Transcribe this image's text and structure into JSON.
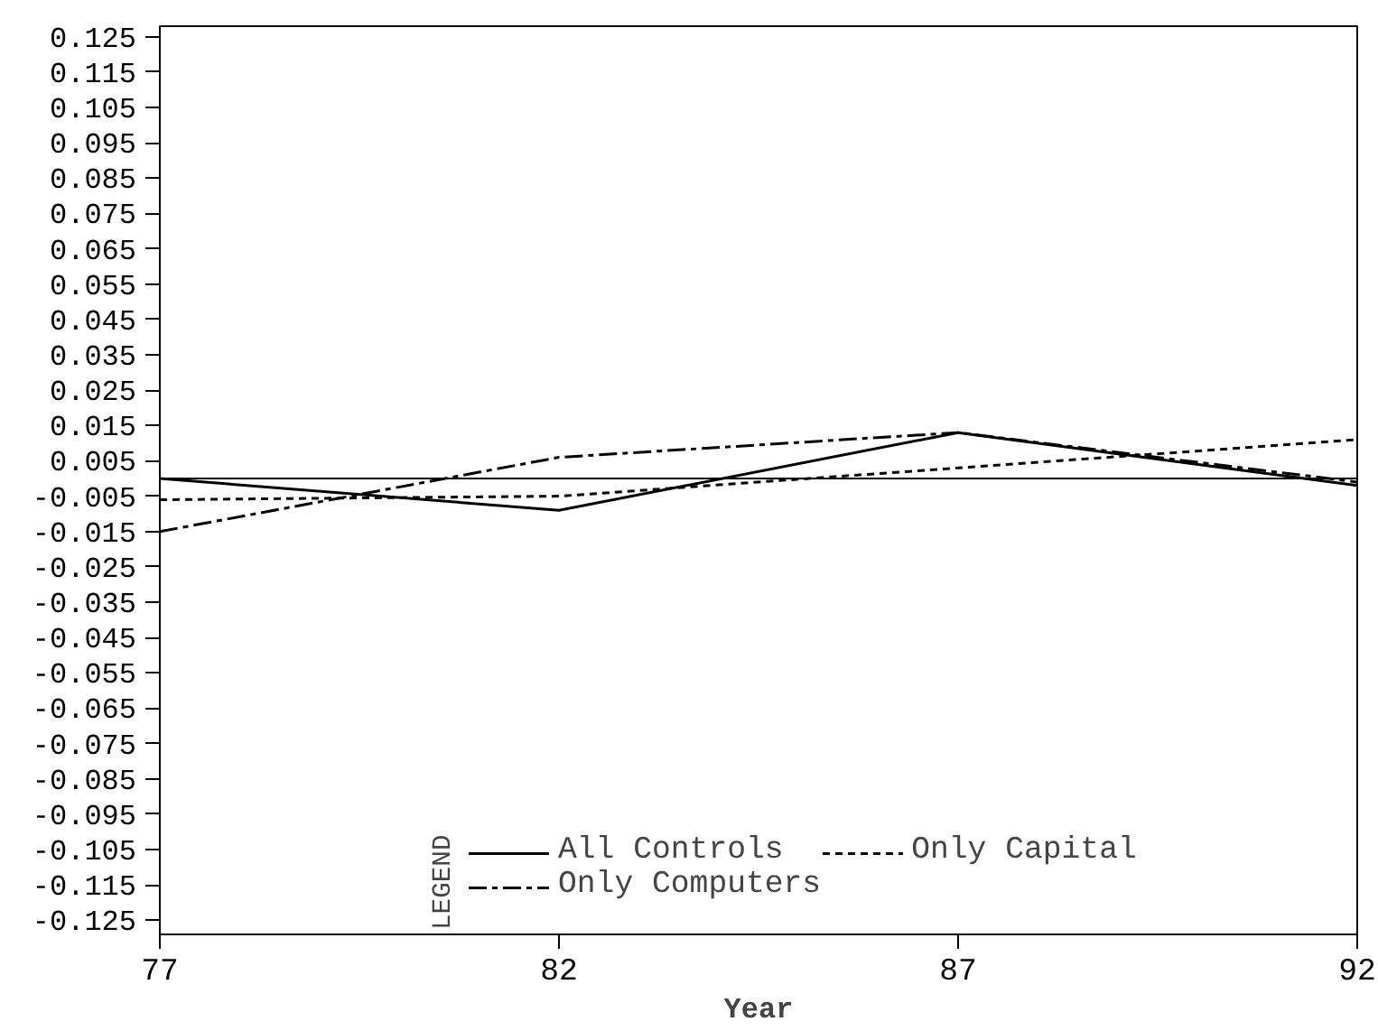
{
  "chart_data": {
    "type": "line",
    "xlabel": "Year",
    "legend_title": "LEGEND",
    "x": [
      77,
      82,
      87,
      92
    ],
    "series": [
      {
        "name": "All Controls",
        "color": "#000000",
        "line_style": "solid",
        "values": [
          0.0,
          -0.009,
          0.013,
          -0.002
        ]
      },
      {
        "name": "Only Capital",
        "color": "#000000",
        "line_style": "dashed",
        "values": [
          -0.006,
          -0.005,
          0.003,
          0.011
        ]
      },
      {
        "name": "Only Computers",
        "color": "#000000",
        "line_style": "dashdot",
        "values": [
          -0.015,
          0.006,
          0.013,
          -0.001
        ]
      }
    ],
    "ref_lines": [
      {
        "axis": "y",
        "value": 0,
        "color": "#000000",
        "line_style": "solid"
      }
    ],
    "xlim": [
      77,
      92
    ],
    "xticks": [
      77,
      82,
      87,
      92
    ],
    "ylim": [
      -0.129,
      0.128
    ],
    "yticks": [
      0.125,
      0.115,
      0.105,
      0.095,
      0.085,
      0.075,
      0.065,
      0.055,
      0.045,
      0.035,
      0.025,
      0.015,
      0.005,
      -0.005,
      -0.015,
      -0.025,
      -0.035,
      -0.045,
      -0.055,
      -0.065,
      -0.075,
      -0.085,
      -0.095,
      -0.105,
      -0.115,
      -0.125
    ],
    "grid": false,
    "marker": "none",
    "legend": "bottom"
  }
}
